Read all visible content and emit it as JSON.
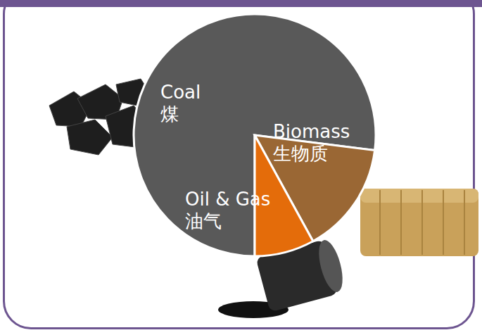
{
  "chart_data": {
    "type": "pie",
    "categories": [
      "Coal\n煤",
      "Biomass\n生物质",
      "Oil & Gas\n油气"
    ],
    "values": [
      77,
      15,
      8
    ],
    "colors": [
      "#595959",
      "#9a6734",
      "#e46c0a"
    ]
  }
}
